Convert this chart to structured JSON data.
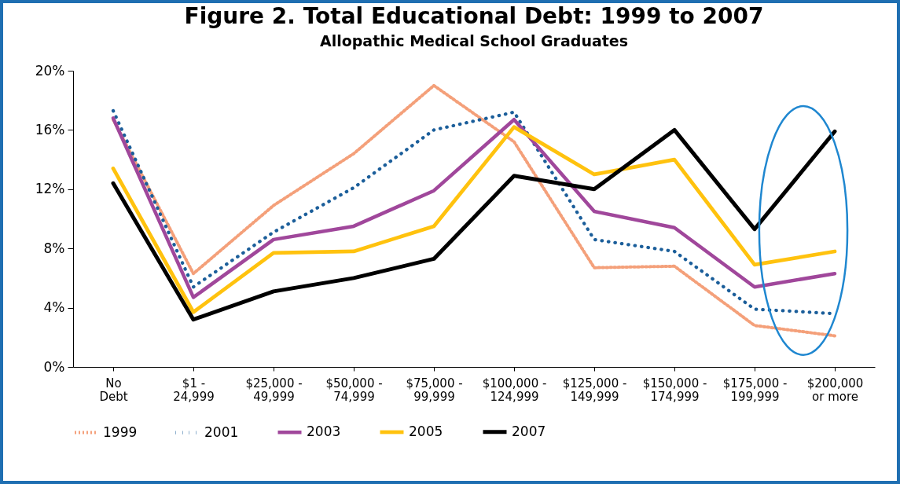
{
  "chart_data": {
    "type": "line",
    "title": "Figure 2. Total Educational Debt: 1999 to 2007",
    "subtitle": "Allopathic Medical School Graduates",
    "categories": [
      "No Debt",
      "$1 - 24,999",
      "$25,000 - 49,999",
      "$50,000 - 74,999",
      "$75,000 - 99,999",
      "$100,000 - 124,999",
      "$125,000 - 149,999",
      "$150,000 - 174,999",
      "$175,000 - 199,999",
      "$200,000 or more"
    ],
    "series": [
      {
        "name": "1999",
        "color": "#f4a07a",
        "line_style": "dashed",
        "values": [
          16.7,
          6.3,
          10.9,
          14.4,
          19.0,
          15.2,
          6.7,
          6.8,
          2.8,
          2.1
        ]
      },
      {
        "name": "2001",
        "color": "#1b5e9a",
        "line_style": "dotted",
        "values": [
          17.3,
          5.4,
          9.1,
          12.1,
          16.0,
          17.2,
          8.6,
          7.8,
          3.9,
          3.6
        ]
      },
      {
        "name": "2003",
        "color": "#a0479b",
        "line_style": "solid",
        "values": [
          16.8,
          4.7,
          8.6,
          9.5,
          11.9,
          16.7,
          10.5,
          9.4,
          5.4,
          6.3
        ]
      },
      {
        "name": "2005",
        "color": "#ffc20e",
        "line_style": "solid",
        "values": [
          13.4,
          3.7,
          7.7,
          7.8,
          9.5,
          16.2,
          13.0,
          14.0,
          6.9,
          7.8
        ]
      },
      {
        "name": "2007",
        "color": "#000000",
        "line_style": "solid",
        "values": [
          12.4,
          3.2,
          5.1,
          6.0,
          7.3,
          12.9,
          12.0,
          16.0,
          9.3,
          15.9
        ]
      }
    ],
    "ylim": [
      0,
      20
    ],
    "yticks": [
      {
        "value": 0,
        "label": "0%"
      },
      {
        "value": 4,
        "label": "4%"
      },
      {
        "value": 8,
        "label": "8%"
      },
      {
        "value": 12,
        "label": "12%"
      },
      {
        "value": 16,
        "label": "16%"
      },
      {
        "value": 20,
        "label": "20%"
      }
    ],
    "grid": false,
    "legend": "bottom",
    "marker": "none"
  }
}
